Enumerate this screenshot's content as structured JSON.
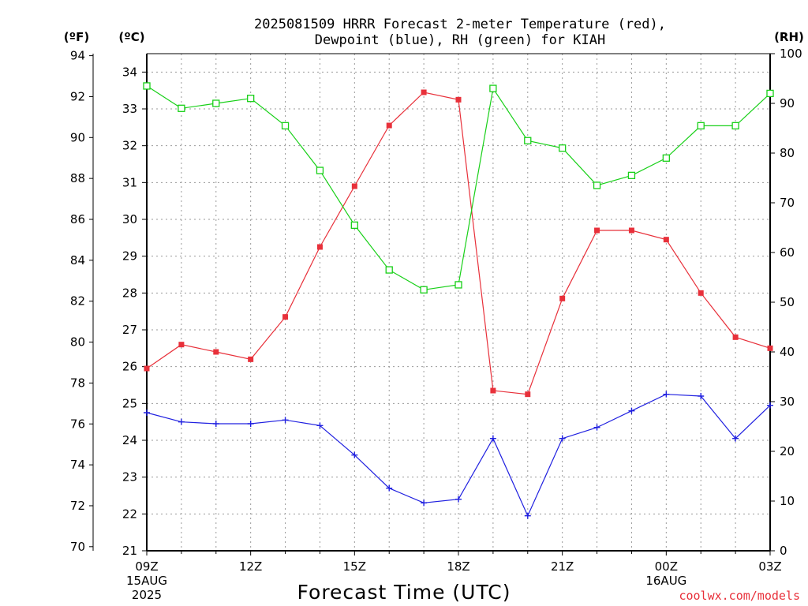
{
  "title_line1": "2025081509 HRRR Forecast 2-meter Temperature (red),",
  "title_line2": "Dewpoint (blue), RH (green) for KIAH",
  "unit_f": "(ºF)",
  "unit_c": "(ºC)",
  "unit_rh": "(RH)",
  "credit": "coolwx.com/models",
  "colors": {
    "temperature": "#e8303a",
    "dewpoint": "#2020e0",
    "rh": "#18d018",
    "grid": "#9a9a9a"
  },
  "chart_data": {
    "type": "line",
    "xlabel": "Forecast Time (UTC)",
    "x_hours": [
      9,
      10,
      11,
      12,
      13,
      14,
      15,
      16,
      17,
      18,
      19,
      20,
      21,
      22,
      23,
      24,
      25,
      26,
      27
    ],
    "x_ticks": [
      {
        "hour": 9,
        "lines": [
          "09Z",
          "15AUG",
          "2025"
        ]
      },
      {
        "hour": 12,
        "lines": [
          "12Z"
        ]
      },
      {
        "hour": 15,
        "lines": [
          "15Z"
        ]
      },
      {
        "hour": 18,
        "lines": [
          "18Z"
        ]
      },
      {
        "hour": 21,
        "lines": [
          "21Z"
        ]
      },
      {
        "hour": 24,
        "lines": [
          "00Z",
          "16AUG"
        ]
      },
      {
        "hour": 27,
        "lines": [
          "03Z"
        ]
      }
    ],
    "xlim": [
      9,
      27
    ],
    "axes": {
      "left_f": {
        "ticks": [
          70,
          72,
          74,
          76,
          78,
          80,
          82,
          84,
          86,
          88,
          90,
          92,
          94
        ],
        "range": [
          69.8,
          94.1
        ]
      },
      "left_c": {
        "ticks": [
          21,
          22,
          23,
          24,
          25,
          26,
          27,
          28,
          29,
          30,
          31,
          32,
          33,
          34
        ],
        "range": [
          21,
          34.5
        ]
      },
      "right_rh": {
        "ticks": [
          0,
          10,
          20,
          30,
          40,
          50,
          60,
          70,
          80,
          90,
          100
        ],
        "range": [
          0,
          100
        ]
      }
    },
    "grid": true,
    "series": [
      {
        "key": "temperature",
        "axis": "left_c",
        "marker": "filled-square",
        "values": [
          25.95,
          26.6,
          26.4,
          26.2,
          27.35,
          29.25,
          30.9,
          32.55,
          33.45,
          33.25,
          25.35,
          25.25,
          27.85,
          29.7,
          29.7,
          29.45,
          28.0,
          26.8,
          26.5
        ]
      },
      {
        "key": "dewpoint",
        "axis": "left_c",
        "marker": "plus",
        "values": [
          24.75,
          24.5,
          24.45,
          24.45,
          24.55,
          24.4,
          23.6,
          22.7,
          22.3,
          22.4,
          24.05,
          21.95,
          24.05,
          24.35,
          24.8,
          25.25,
          25.2,
          24.05,
          24.95
        ]
      },
      {
        "key": "rh",
        "axis": "right_rh",
        "marker": "open-square",
        "values": [
          93.5,
          89,
          90,
          91,
          85.5,
          76.5,
          65.5,
          56.5,
          52.5,
          53.5,
          93,
          82.5,
          81,
          73.5,
          75.5,
          79,
          85.5,
          85.5,
          92
        ]
      }
    ]
  }
}
